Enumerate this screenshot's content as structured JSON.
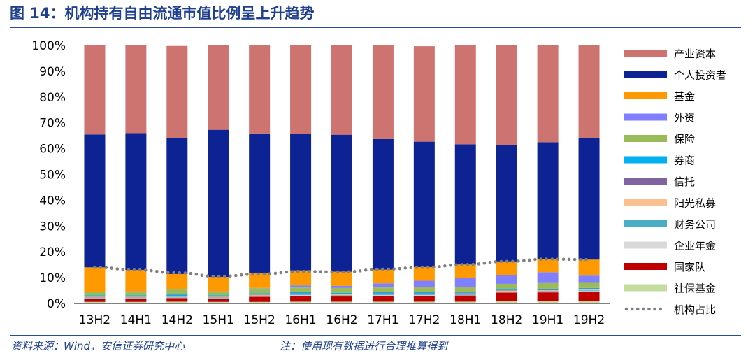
{
  "title": "图 14：机构持有自由流通市值比例呈上升趋势",
  "footer": {
    "source": "资料来源：Wind，安信证券研究中心",
    "note": "注：使用现有数据进行合理推算得到"
  },
  "chart_data": {
    "type": "bar",
    "stacked": true,
    "title": "",
    "xlabel": "",
    "ylabel": "",
    "ylim": [
      0,
      100
    ],
    "y_ticks": [
      "0%",
      "10%",
      "20%",
      "30%",
      "40%",
      "50%",
      "60%",
      "70%",
      "80%",
      "90%",
      "100%"
    ],
    "categories": [
      "13H2",
      "14H1",
      "14H2",
      "15H1",
      "15H2",
      "16H1",
      "16H2",
      "17H1",
      "17H2",
      "18H1",
      "18H2",
      "19H1",
      "19H2"
    ],
    "grid": false,
    "legend_position": "right",
    "series": [
      {
        "name": "社保基金",
        "color": "#c4dd9f",
        "values": [
          0.6,
          0.6,
          0.7,
          0.6,
          0.6,
          0.7,
          0.7,
          0.7,
          0.7,
          0.7,
          0.8,
          0.8,
          0.8
        ]
      },
      {
        "name": "国家队",
        "color": "#c00000",
        "values": [
          1.2,
          1.2,
          1.4,
          1.2,
          2.0,
          2.3,
          2.0,
          2.3,
          2.3,
          2.4,
          3.4,
          3.5,
          3.8
        ]
      },
      {
        "name": "企业年金",
        "color": "#d9d9d9",
        "values": [
          0.2,
          0.2,
          0.2,
          0.2,
          0.2,
          0.2,
          0.2,
          0.2,
          0.2,
          0.2,
          0.2,
          0.2,
          0.2
        ]
      },
      {
        "name": "财务公司",
        "color": "#4bacc6",
        "values": [
          0.3,
          0.3,
          0.3,
          0.3,
          0.3,
          0.3,
          0.3,
          0.3,
          0.3,
          0.3,
          0.3,
          0.3,
          0.3
        ]
      },
      {
        "name": "阳光私募",
        "color": "#fac090",
        "values": [
          0.3,
          0.3,
          0.3,
          0.3,
          0.3,
          0.3,
          0.3,
          0.3,
          0.3,
          0.3,
          0.3,
          0.3,
          0.3
        ]
      },
      {
        "name": "信托",
        "color": "#8064a2",
        "values": [
          0.2,
          0.2,
          0.2,
          0.2,
          0.2,
          0.2,
          0.2,
          0.2,
          0.2,
          0.2,
          0.2,
          0.2,
          0.2
        ]
      },
      {
        "name": "券商",
        "color": "#00b0f0",
        "values": [
          0.4,
          0.4,
          0.4,
          0.4,
          0.4,
          0.4,
          0.4,
          0.4,
          0.4,
          0.4,
          0.4,
          0.4,
          0.4
        ]
      },
      {
        "name": "保险",
        "color": "#9bbb59",
        "values": [
          1.2,
          1.4,
          1.9,
          1.4,
          1.9,
          1.8,
          1.9,
          1.8,
          2.0,
          1.9,
          2.0,
          2.2,
          2.0
        ]
      },
      {
        "name": "外资",
        "color": "#7f7fff",
        "values": [
          0.1,
          0.1,
          0.1,
          0.1,
          0.1,
          0.8,
          0.8,
          1.6,
          2.4,
          3.5,
          3.5,
          4.2,
          2.8
        ]
      },
      {
        "name": "基金",
        "color": "#ff9900",
        "values": [
          9.5,
          8.3,
          5.9,
          5.6,
          5.8,
          5.8,
          5.5,
          5.3,
          5.3,
          5.2,
          5.2,
          5.1,
          6.2
        ]
      },
      {
        "name": "个人投资者",
        "color": "#0d2393",
        "values": [
          51.5,
          53.0,
          52.6,
          57.0,
          54.1,
          52.8,
          53.1,
          50.6,
          48.6,
          46.6,
          45.2,
          45.3,
          47.0
        ]
      },
      {
        "name": "产业资本",
        "color": "#cd7370",
        "values": [
          34.5,
          34.0,
          35.8,
          32.7,
          34.1,
          34.6,
          34.6,
          36.3,
          37.0,
          38.3,
          38.5,
          37.5,
          36.0
        ]
      }
    ],
    "line_series": {
      "name": "机构占比",
      "color": "#808080",
      "values": [
        14.0,
        13.0,
        11.9,
        10.5,
        11.4,
        12.4,
        12.2,
        13.3,
        14.0,
        15.1,
        16.3,
        17.2,
        17.0
      ]
    },
    "legend_order": [
      "产业资本",
      "个人投资者",
      "基金",
      "外资",
      "保险",
      "券商",
      "信托",
      "阳光私募",
      "财务公司",
      "企业年金",
      "国家队",
      "社保基金",
      "机构占比"
    ]
  }
}
